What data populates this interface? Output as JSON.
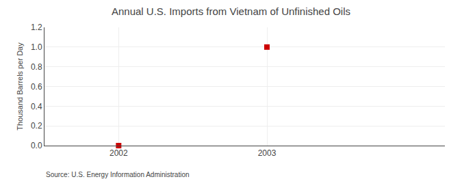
{
  "chart_data": {
    "type": "scatter",
    "title": "Annual U.S. Imports from Vietnam of Unfinished Oils",
    "ylabel": "Thousand Barrels per Day",
    "annotations": [
      "Source: U.S. Energy Information Administration"
    ],
    "x": [
      2002,
      2003
    ],
    "values": [
      0.0,
      1.0
    ],
    "color": "#cc0000",
    "marker": "square",
    "xlim": [
      2001.5,
      2004.2
    ],
    "ylim": [
      0.0,
      1.2
    ],
    "xticks": [
      2002,
      2003
    ],
    "yticks": [
      {
        "value": 0.0,
        "label": "0.0"
      },
      0.2,
      0.4,
      0.6,
      0.8,
      {
        "value": 1.0,
        "label": "1.0"
      },
      1.2
    ],
    "grid": true
  }
}
